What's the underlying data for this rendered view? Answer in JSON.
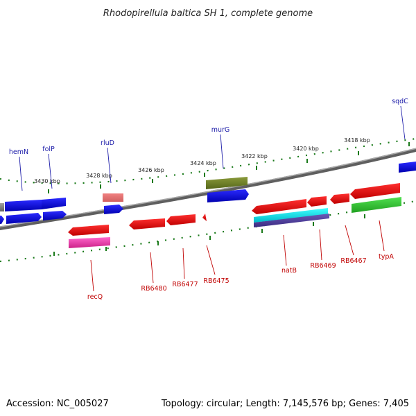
{
  "title": "Rhodopirellula baltica SH 1, complete genome",
  "footer": {
    "accession": "Accession: NC_005027",
    "summary": "Topology: circular; Length: 7,145,576 bp; Genes: 7,405"
  },
  "colors": {
    "backbone": "#7a7a7a",
    "tick": "#1a7a1a",
    "blue_label": "#1a1aa8",
    "red_label": "#c00000"
  },
  "ruler_labels": [
    "3430 kbp",
    "3428 kbp",
    "3426 kbp",
    "3424 kbp",
    "3422 kbp",
    "3420 kbp",
    "3418 kbp"
  ],
  "gene_labels_top": [
    "hemN",
    "folP",
    "rluD",
    "murG",
    "sqdC"
  ],
  "gene_labels_bottom": [
    "recQ",
    "RB6480",
    "RB6477",
    "RB6475",
    "natB",
    "RB6469",
    "RB6467",
    "typA"
  ]
}
